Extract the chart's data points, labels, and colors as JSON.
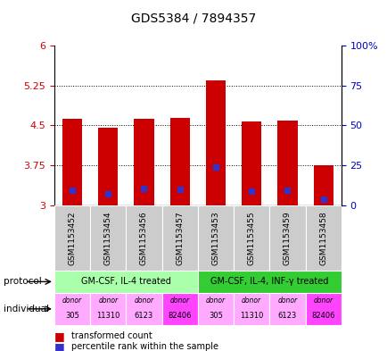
{
  "title": "GDS5384 / 7894357",
  "samples": [
    "GSM1153452",
    "GSM1153454",
    "GSM1153456",
    "GSM1153457",
    "GSM1153453",
    "GSM1153455",
    "GSM1153459",
    "GSM1153458"
  ],
  "bar_values": [
    4.62,
    4.45,
    4.62,
    4.65,
    5.35,
    4.57,
    4.6,
    3.75
  ],
  "blue_marks": [
    3.28,
    3.22,
    3.32,
    3.3,
    3.72,
    3.26,
    3.28,
    3.12
  ],
  "ymin": 3.0,
  "ymax": 6.0,
  "yticks": [
    3.0,
    3.75,
    4.5,
    5.25,
    6.0
  ],
  "ytick_labels": [
    "3",
    "3.75",
    "4.5",
    "5.25",
    "6"
  ],
  "y2ticks": [
    0,
    25,
    50,
    75,
    100
  ],
  "y2tick_labels": [
    "0",
    "25",
    "50",
    "75",
    "100%"
  ],
  "bar_color": "#cc0000",
  "blue_color": "#3333cc",
  "bar_width": 0.55,
  "protocol_labels": [
    "GM-CSF, IL-4 treated",
    "GM-CSF, IL-4, INF-γ treated"
  ],
  "protocol_color_light": "#aaffaa",
  "protocol_color_dark": "#33cc33",
  "individual_colors": [
    "#ffaaff",
    "#ffaaff",
    "#ffaaff",
    "#ff44ff",
    "#ffaaff",
    "#ffaaff",
    "#ffaaff",
    "#ff44ff"
  ],
  "individual_donor_ids": [
    "305",
    "11310",
    "6123",
    "82406",
    "305",
    "11310",
    "6123",
    "82406"
  ],
  "sample_bg_color": "#cccccc",
  "left_label_color": "#cc0000",
  "right_label_color": "#0000cc",
  "title_color": "#000000"
}
